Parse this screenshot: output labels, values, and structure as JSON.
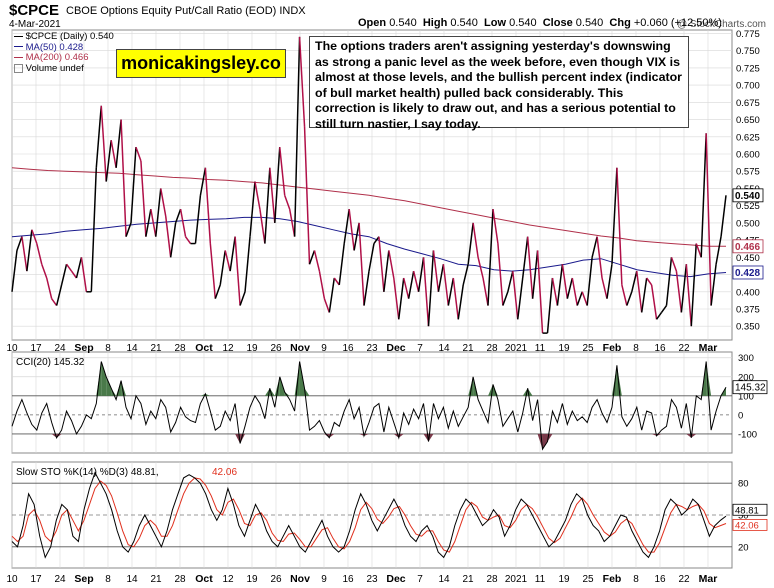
{
  "header": {
    "symbol": "$CPCE",
    "description": "CBOE Options Equity Put/Call Ratio (EOD)",
    "exchange": "INDX",
    "date": "4-Mar-2021",
    "watermark": "@ StockCharts.com",
    "ohlc": {
      "open_label": "Open",
      "open": "0.540",
      "high_label": "High",
      "high": "0.540",
      "low_label": "Low",
      "low": "0.540",
      "close_label": "Close",
      "close": "0.540",
      "chg_label": "Chg",
      "chg": "+0.060 (+12.50%)"
    }
  },
  "legend": {
    "main": "$CPCE (Daily) 0.540",
    "ma50": "MA(50) 0.428",
    "ma200": "MA(200) 0.466",
    "volume": "Volume undef"
  },
  "brand_text": "monicakingsley.co",
  "annotation": "The options traders aren't assigning yesterday's downswing as strong a panic level as the week before, even though VIX is almost at those levels, and the bullish percent index (indicator of bull market health) pulled back considerably. This correction is likely to draw out, and has a serious potential to still turn nastier, I say today.",
  "colors": {
    "price": "#000000",
    "red_segment": "#b01048",
    "ma50": "#1a1a8c",
    "ma200": "#b0304a",
    "cci_fill": "#4a7a4a",
    "cci_fill_neg": "#7a3a4a",
    "stoch_k": "#000000",
    "stoch_d": "#e0301e",
    "grid": "#d8d8d8"
  },
  "chart_data": [
    {
      "type": "line",
      "name": "price",
      "yticks": [
        0.35,
        0.375,
        0.4,
        0.425,
        0.45,
        0.475,
        0.5,
        0.525,
        0.55,
        0.575,
        0.6,
        0.625,
        0.65,
        0.675,
        0.7,
        0.725,
        0.75,
        0.775
      ],
      "ylim": [
        0.33,
        0.78
      ],
      "price_labels": {
        "last": "0.540",
        "ma200": "0.466",
        "ma50": "0.428"
      },
      "x_ticks": [
        "10",
        "17",
        "24",
        "Sep",
        "8",
        "14",
        "21",
        "28",
        "Oct",
        "12",
        "19",
        "26",
        "Nov",
        "9",
        "16",
        "23",
        "Dec",
        "7",
        "14",
        "21",
        "28",
        "2021",
        "11",
        "19",
        "25",
        "Feb",
        "8",
        "16",
        "22",
        "Mar"
      ],
      "series": [
        {
          "name": "$CPCE (Daily)",
          "values": [
            0.4,
            0.46,
            0.48,
            0.43,
            0.49,
            0.47,
            0.44,
            0.42,
            0.39,
            0.38,
            0.41,
            0.44,
            0.43,
            0.42,
            0.45,
            0.4,
            0.4,
            0.58,
            0.67,
            0.56,
            0.62,
            0.58,
            0.65,
            0.48,
            0.5,
            0.61,
            0.59,
            0.48,
            0.52,
            0.48,
            0.55,
            0.51,
            0.45,
            0.5,
            0.52,
            0.48,
            0.47,
            0.47,
            0.54,
            0.58,
            0.47,
            0.39,
            0.41,
            0.46,
            0.43,
            0.48,
            0.38,
            0.4,
            0.48,
            0.56,
            0.52,
            0.47,
            0.58,
            0.5,
            0.61,
            0.54,
            0.52,
            0.48,
            0.77,
            0.64,
            0.44,
            0.46,
            0.43,
            0.39,
            0.37,
            0.42,
            0.41,
            0.47,
            0.52,
            0.46,
            0.5,
            0.38,
            0.43,
            0.47,
            0.48,
            0.4,
            0.46,
            0.42,
            0.36,
            0.42,
            0.39,
            0.43,
            0.4,
            0.45,
            0.35,
            0.46,
            0.4,
            0.44,
            0.38,
            0.42,
            0.36,
            0.41,
            0.44,
            0.5,
            0.45,
            0.42,
            0.38,
            0.52,
            0.47,
            0.38,
            0.4,
            0.43,
            0.36,
            0.42,
            0.48,
            0.39,
            0.46,
            0.34,
            0.34,
            0.42,
            0.38,
            0.44,
            0.39,
            0.42,
            0.38,
            0.4,
            0.38,
            0.45,
            0.48,
            0.42,
            0.39,
            0.44,
            0.58,
            0.41,
            0.38,
            0.4,
            0.43,
            0.37,
            0.42,
            0.41,
            0.36,
            0.37,
            0.38,
            0.45,
            0.43,
            0.37,
            0.44,
            0.35,
            0.47,
            0.45,
            0.63,
            0.38,
            0.44,
            0.48,
            0.54
          ]
        },
        {
          "name": "MA(50)",
          "values": [
            0.48,
            0.482,
            0.484,
            0.488,
            0.49,
            0.492,
            0.495,
            0.498,
            0.5,
            0.502,
            0.504,
            0.505,
            0.506,
            0.508,
            0.508,
            0.506,
            0.502,
            0.496,
            0.49,
            0.484,
            0.48,
            0.47,
            0.462,
            0.455,
            0.448,
            0.44,
            0.438,
            0.432,
            0.43,
            0.432,
            0.436,
            0.44,
            0.446,
            0.448,
            0.44,
            0.432,
            0.428,
            0.424,
            0.422,
            0.426,
            0.428
          ]
        },
        {
          "name": "MA(200)",
          "values": [
            0.58,
            0.578,
            0.576,
            0.575,
            0.574,
            0.573,
            0.572,
            0.57,
            0.568,
            0.566,
            0.565,
            0.563,
            0.562,
            0.56,
            0.558,
            0.555,
            0.552,
            0.549,
            0.546,
            0.543,
            0.54,
            0.536,
            0.532,
            0.527,
            0.522,
            0.517,
            0.512,
            0.507,
            0.502,
            0.497,
            0.493,
            0.489,
            0.485,
            0.481,
            0.478,
            0.474,
            0.472,
            0.47,
            0.468,
            0.466,
            0.466
          ]
        }
      ]
    },
    {
      "type": "line",
      "name": "cci",
      "title": "CCI(20) 145.32",
      "yticks": [
        300,
        200,
        100,
        0,
        -100
      ],
      "ylim": [
        -200,
        330
      ],
      "last_label": "145.32",
      "values": [
        -60,
        20,
        80,
        10,
        -50,
        -80,
        10,
        60,
        -40,
        -120,
        -80,
        20,
        -30,
        -100,
        -60,
        0,
        -20,
        60,
        280,
        200,
        140,
        80,
        180,
        40,
        -20,
        100,
        60,
        -50,
        20,
        -20,
        80,
        40,
        -90,
        -40,
        40,
        -10,
        -30,
        -40,
        60,
        110,
        20,
        -80,
        -60,
        20,
        -30,
        60,
        -150,
        -60,
        40,
        100,
        60,
        -20,
        140,
        40,
        200,
        120,
        80,
        20,
        280,
        140,
        -80,
        -60,
        -30,
        -90,
        -120,
        -40,
        -60,
        20,
        80,
        -20,
        40,
        -110,
        -40,
        40,
        60,
        -90,
        40,
        -40,
        -120,
        10,
        -50,
        30,
        -20,
        60,
        -140,
        60,
        -20,
        40,
        -70,
        20,
        -60,
        -10,
        40,
        200,
        80,
        20,
        -40,
        160,
        80,
        -60,
        -20,
        20,
        -90,
        10,
        140,
        -30,
        80,
        -180,
        -140,
        20,
        -40,
        60,
        -50,
        20,
        -30,
        -10,
        -40,
        40,
        80,
        10,
        -40,
        40,
        260,
        -10,
        -60,
        -20,
        40,
        -80,
        20,
        10,
        -110,
        -80,
        -60,
        80,
        40,
        -70,
        60,
        -120,
        100,
        80,
        280,
        -80,
        20,
        100,
        145
      ]
    },
    {
      "type": "line",
      "name": "stochastic",
      "title": "Slow STO %K(14) %D(3) 48.81, 42.06",
      "title_parts": {
        "k": "Slow STO %K(14) %D(3) 48.81,",
        "d": "42.06"
      },
      "yticks": [
        80,
        50,
        20
      ],
      "ylim": [
        0,
        100
      ],
      "last_labels": {
        "k": "48.81",
        "d": "42.06"
      },
      "series": [
        {
          "name": "%K",
          "values": [
            25,
            20,
            40,
            70,
            60,
            30,
            10,
            20,
            45,
            60,
            55,
            30,
            25,
            55,
            75,
            90,
            80,
            70,
            55,
            35,
            20,
            15,
            25,
            40,
            50,
            40,
            30,
            20,
            35,
            55,
            70,
            85,
            88,
            85,
            80,
            70,
            55,
            45,
            55,
            75,
            60,
            40,
            30,
            45,
            60,
            50,
            35,
            25,
            20,
            30,
            40,
            30,
            20,
            15,
            25,
            35,
            45,
            30,
            20,
            15,
            20,
            35,
            55,
            70,
            60,
            45,
            35,
            45,
            55,
            65,
            55,
            40,
            30,
            25,
            35,
            40,
            30,
            15,
            10,
            20,
            40,
            55,
            65,
            60,
            50,
            40,
            45,
            55,
            48,
            30,
            40,
            55,
            65,
            60,
            50,
            40,
            30,
            20,
            25,
            35,
            45,
            60,
            70,
            65,
            50,
            40,
            35,
            25,
            30,
            40,
            50,
            48,
            35,
            25,
            15,
            10,
            20,
            35,
            55,
            65,
            60,
            50,
            55,
            65,
            60,
            45,
            30,
            40,
            45,
            49
          ]
        },
        {
          "name": "%D",
          "values": [
            30,
            25,
            30,
            50,
            55,
            45,
            30,
            25,
            35,
            50,
            55,
            45,
            35,
            45,
            60,
            75,
            82,
            78,
            68,
            52,
            35,
            22,
            20,
            28,
            40,
            45,
            40,
            30,
            30,
            40,
            55,
            70,
            80,
            85,
            84,
            78,
            68,
            55,
            50,
            62,
            65,
            55,
            42,
            40,
            50,
            52,
            45,
            33,
            26,
            25,
            32,
            33,
            27,
            20,
            20,
            28,
            36,
            38,
            28,
            20,
            18,
            25,
            38,
            55,
            62,
            56,
            46,
            42,
            48,
            56,
            58,
            50,
            40,
            32,
            30,
            35,
            35,
            25,
            17,
            15,
            25,
            40,
            55,
            62,
            58,
            48,
            45,
            48,
            50,
            40,
            38,
            45,
            55,
            60,
            56,
            48,
            38,
            28,
            24,
            28,
            38,
            48,
            60,
            66,
            60,
            50,
            42,
            34,
            30,
            34,
            42,
            46,
            42,
            32,
            22,
            15,
            15,
            24,
            38,
            52,
            60,
            58,
            55,
            58,
            60,
            54,
            42,
            38,
            40,
            42
          ]
        }
      ]
    }
  ]
}
